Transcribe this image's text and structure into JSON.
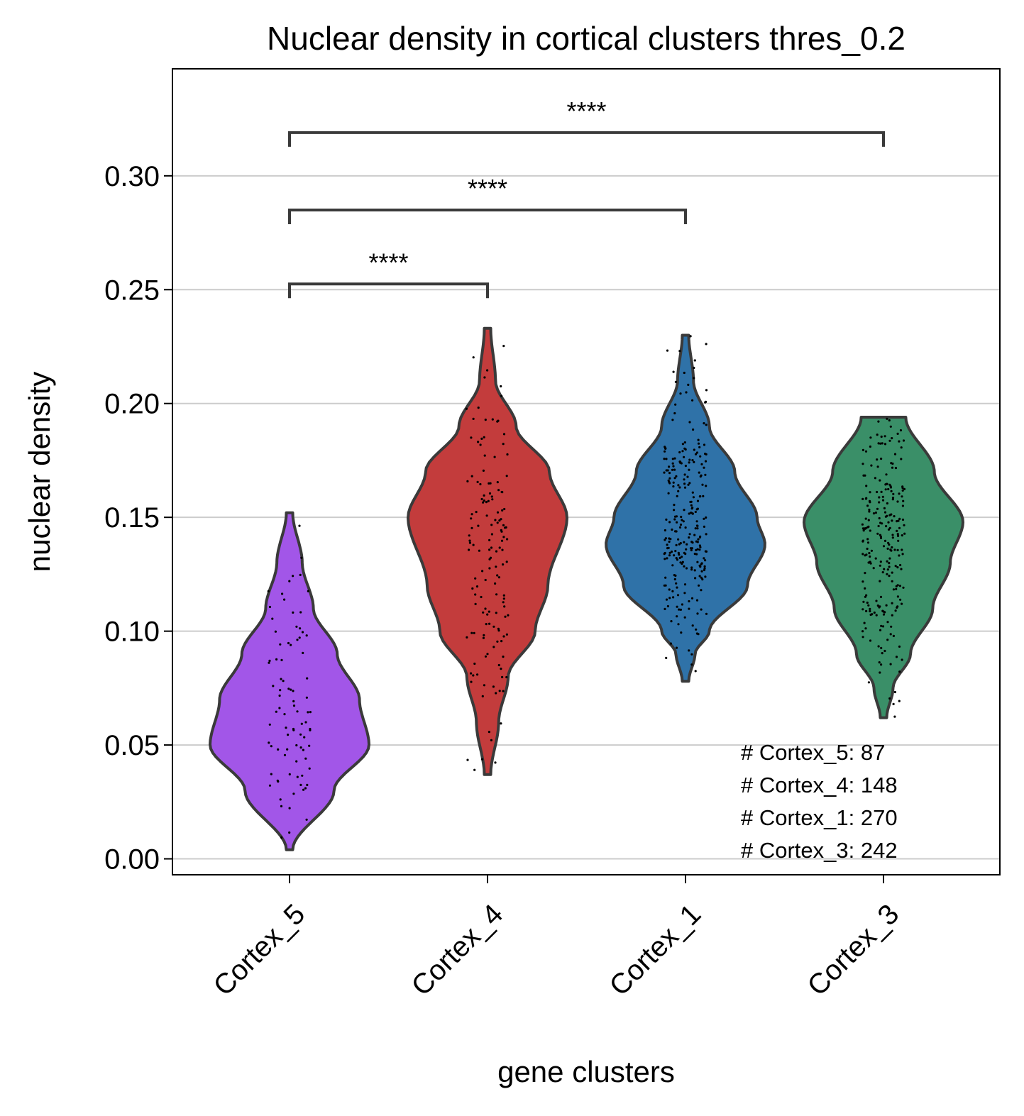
{
  "chart_data": {
    "type": "violin",
    "title": "Nuclear density in cortical clusters thres_0.2",
    "xlabel": "gene clusters",
    "ylabel": "nuclear density",
    "ylim": [
      -0.007,
      0.347
    ],
    "yticks": [
      "0.00",
      "0.05",
      "0.10",
      "0.15",
      "0.20",
      "0.25",
      "0.30"
    ],
    "grid": "horizontal",
    "categories": [
      "Cortex_5",
      "Cortex_4",
      "Cortex_1",
      "Cortex_3"
    ],
    "series": [
      {
        "category": "Cortex_5",
        "color": "#a256e8",
        "n": 87,
        "min": 0.004,
        "max": 0.152,
        "profile": [
          [
            0.004,
            0.02
          ],
          [
            0.03,
            0.28
          ],
          [
            0.05,
            0.5
          ],
          [
            0.07,
            0.44
          ],
          [
            0.09,
            0.3
          ],
          [
            0.11,
            0.15
          ],
          [
            0.13,
            0.08
          ],
          [
            0.152,
            0.02
          ]
        ]
      },
      {
        "category": "Cortex_4",
        "color": "#c33c3c",
        "n": 148,
        "min": 0.037,
        "max": 0.233,
        "profile": [
          [
            0.037,
            0.02
          ],
          [
            0.06,
            0.07
          ],
          [
            0.08,
            0.13
          ],
          [
            0.1,
            0.3
          ],
          [
            0.12,
            0.38
          ],
          [
            0.15,
            0.5
          ],
          [
            0.17,
            0.39
          ],
          [
            0.19,
            0.18
          ],
          [
            0.21,
            0.05
          ],
          [
            0.233,
            0.02
          ]
        ]
      },
      {
        "category": "Cortex_1",
        "color": "#2f72a8",
        "n": 270,
        "min": 0.078,
        "max": 0.23,
        "profile": [
          [
            0.078,
            0.02
          ],
          [
            0.09,
            0.06
          ],
          [
            0.1,
            0.15
          ],
          [
            0.12,
            0.39
          ],
          [
            0.138,
            0.5
          ],
          [
            0.15,
            0.45
          ],
          [
            0.17,
            0.31
          ],
          [
            0.19,
            0.15
          ],
          [
            0.21,
            0.05
          ],
          [
            0.23,
            0.02
          ]
        ]
      },
      {
        "category": "Cortex_3",
        "color": "#3a8f68",
        "n": 242,
        "min": 0.062,
        "max": 0.194,
        "profile": [
          [
            0.062,
            0.02
          ],
          [
            0.075,
            0.06
          ],
          [
            0.09,
            0.17
          ],
          [
            0.11,
            0.31
          ],
          [
            0.13,
            0.42
          ],
          [
            0.148,
            0.5
          ],
          [
            0.17,
            0.32
          ],
          [
            0.194,
            0.14
          ]
        ]
      }
    ],
    "comparisons": [
      {
        "from": "Cortex_5",
        "to": "Cortex_4",
        "label": "****",
        "y": 0.2525
      },
      {
        "from": "Cortex_5",
        "to": "Cortex_1",
        "label": "****",
        "y": 0.285
      },
      {
        "from": "Cortex_5",
        "to": "Cortex_3",
        "label": "****",
        "y": 0.319
      }
    ],
    "counts": [
      "# Cortex_5: 87",
      "# Cortex_4: 148",
      "# Cortex_1: 270",
      "# Cortex_3: 242"
    ]
  }
}
